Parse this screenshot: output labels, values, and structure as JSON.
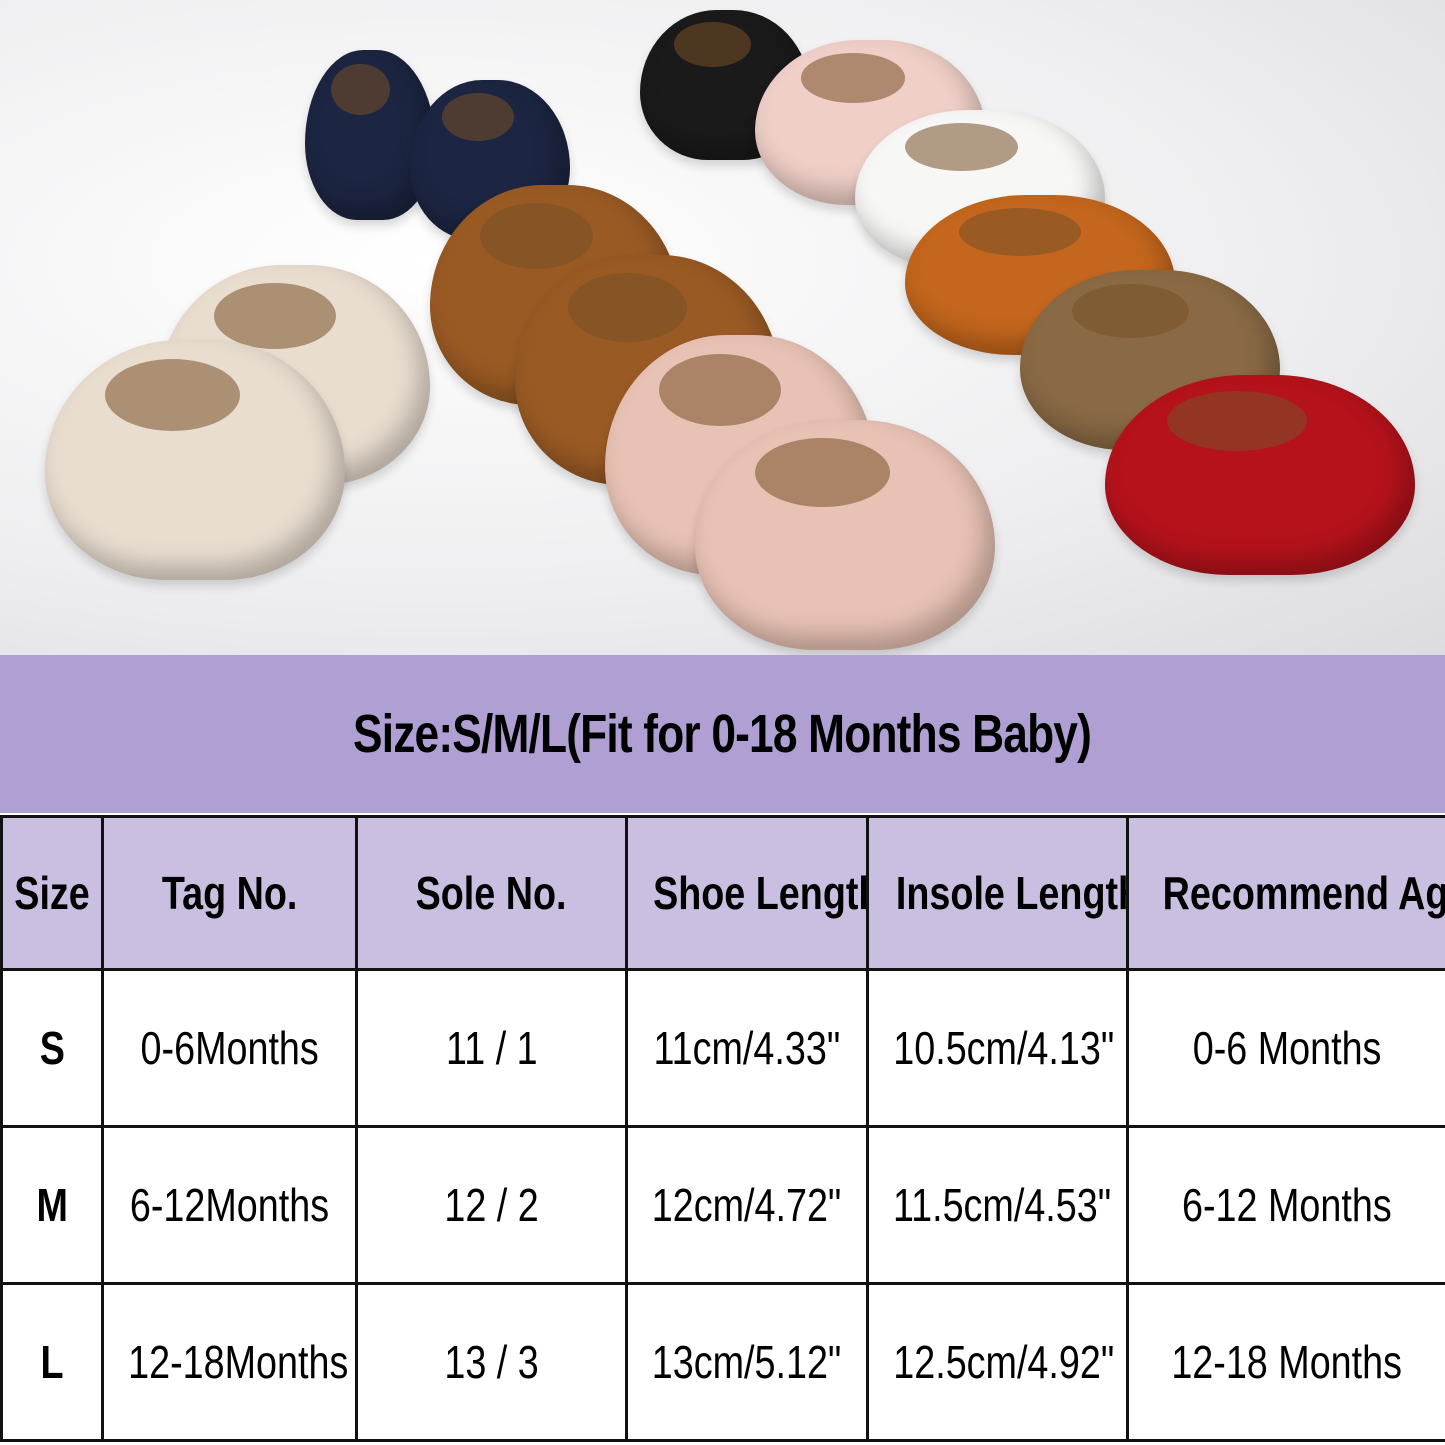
{
  "photo": {
    "description_icon": "baby-shoes-photo",
    "shoe_colors": [
      "#1c2541",
      "#1a1a1a",
      "#f0cfc8",
      "#f7f7f5",
      "#c4661d",
      "#9a5a24",
      "#e9ddd0",
      "#e8c2b4",
      "#7a5533",
      "#b5121b"
    ]
  },
  "title": "Size:S/M/L(Fit for 0-18 Months Baby)",
  "colors": {
    "title_band": "#b09fd3",
    "header_row": "#cbbfe1"
  },
  "table": {
    "headers": [
      "Size",
      "Tag No.",
      "Sole No.",
      "Shoe Length",
      "Insole Length",
      "Recommend Age"
    ],
    "rows": [
      [
        "S",
        "0-6Months",
        "11 / 1",
        "11cm/4.33\"",
        "10.5cm/4.13\"",
        "0-6 Months"
      ],
      [
        "M",
        "6-12Months",
        "12 / 2",
        "12cm/4.72\"",
        "11.5cm/4.53\"",
        "6-12 Months"
      ],
      [
        "L",
        "12-18Months",
        "13 / 3",
        "13cm/5.12\"",
        "12.5cm/4.92\"",
        "12-18 Months"
      ]
    ]
  }
}
